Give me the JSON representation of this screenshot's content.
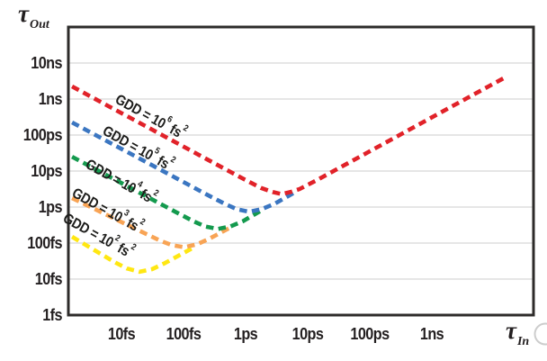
{
  "figure": {
    "background": "#ffffff",
    "frame_color": "#2d2b2a",
    "gridline_color": "#d8d8d8",
    "text_color": "#231f20"
  },
  "chart_data": {
    "type": "line",
    "title": "",
    "log_x": true,
    "log_y": true,
    "grid": "horizontal-only",
    "legend_position": "inline-rotated-labels",
    "xlabel": {
      "sym": "τ",
      "sub": "In"
    },
    "ylabel": {
      "sym": "τ",
      "sub": "Out"
    },
    "x_unit": "fs",
    "y_unit": "fs",
    "x_range_fs": [
      1.4,
      40000000.0
    ],
    "y_range_fs": [
      1,
      100000000.0
    ],
    "x_ticks": [
      {
        "label": "10fs",
        "value": 10
      },
      {
        "label": "100fs",
        "value": 100
      },
      {
        "label": "1ps",
        "value": 1000
      },
      {
        "label": "10ps",
        "value": 10000.0
      },
      {
        "label": "100ps",
        "value": 100000.0
      },
      {
        "label": "1ns",
        "value": 1000000.0
      }
    ],
    "y_ticks": [
      {
        "label": "10ns",
        "value": 10000000.0
      },
      {
        "label": "1ns",
        "value": 1000000.0
      },
      {
        "label": "100ps",
        "value": 100000.0
      },
      {
        "label": "10ps",
        "value": 10000.0
      },
      {
        "label": "1ps",
        "value": 1000
      },
      {
        "label": "100fs",
        "value": 100
      },
      {
        "label": "10fs",
        "value": 10
      },
      {
        "label": "1fs",
        "value": 1
      }
    ],
    "series": [
      {
        "id": "gdd-1e6",
        "name": "GDD = 10⁶ fs²",
        "gdd_fs2": 1000000,
        "color": "#e12229",
        "label": {
          "base": "GDD = 10",
          "exp": "6",
          "unit": " fs",
          "unit_exp": "2"
        },
        "points": [
          [
            1.6,
            2240000.0
          ],
          [
            6.06,
            646000.0
          ],
          [
            23,
            187000.0
          ],
          [
            87.5,
            54000.0
          ],
          [
            332,
            15600.0
          ],
          [
            905,
            6170
          ],
          [
            1760,
            3410
          ],
          [
            2720,
            2620
          ],
          [
            3800,
            2290
          ],
          [
            5300,
            2620
          ],
          [
            7410,
            3160
          ],
          [
            14400.0,
            5720
          ],
          [
            54800.0,
            20100.0
          ],
          [
            291000.0,
            96600.0
          ],
          [
            1540000.0,
            465000.0
          ],
          [
            8180000.0,
            2240000.0
          ],
          [
            16000000.0,
            4190000.0
          ]
        ]
      },
      {
        "id": "gdd-1e5",
        "name": "GDD = 10⁵ fs²",
        "gdd_fs2": 100000,
        "color": "#3b76c1",
        "label": {
          "base": "GDD = 10",
          "exp": "5",
          "unit": " fs",
          "unit_exp": "2"
        },
        "points": [
          [
            1.6,
            224000.0
          ],
          [
            6.06,
            65300.0
          ],
          [
            23,
            19200.0
          ],
          [
            87.5,
            5590
          ],
          [
            238,
            2210
          ],
          [
            464,
            1220
          ],
          [
            716,
            876
          ],
          [
            1140,
            741
          ],
          [
            1820,
            876
          ],
          [
            2910,
            1220
          ],
          [
            6700,
            2770
          ]
        ]
      },
      {
        "id": "gdd-1e4",
        "name": "GDD = 10⁴ fs²",
        "gdd_fs2": 10000,
        "color": "#149a4e",
        "label": {
          "base": "GDD = 10",
          "exp": "4",
          "unit": " fs",
          "unit_exp": "2"
        },
        "points": [
          [
            1.6,
            25000.0
          ],
          [
            6.06,
            7330
          ],
          [
            23,
            2150
          ],
          [
            74.1,
            737
          ],
          [
            144,
            405
          ],
          [
            223,
            290
          ],
          [
            355,
            245
          ],
          [
            567,
            290
          ],
          [
            905,
            405
          ],
          [
            1760,
            785
          ]
        ]
      },
      {
        "id": "gdd-1e3",
        "name": "GDD = 10³ fs²",
        "gdd_fs2": 1000,
        "color": "#f8a455",
        "label": {
          "base": "GDD = 10",
          "exp": "3",
          "unit": " fs",
          "unit_exp": "2"
        },
        "points": [
          [
            1.6,
            1780
          ],
          [
            5.13,
            672
          ],
          [
            16.5,
            253
          ],
          [
            42,
            117
          ],
          [
            64.8,
            87.6
          ],
          [
            103,
            76.7
          ],
          [
            165,
            92.3
          ],
          [
            263,
            133
          ],
          [
            606,
            287
          ]
        ]
      },
      {
        "id": "gdd-1e2",
        "name": "GDD = 10² fs²",
        "gdd_fs2": 100,
        "color": "#ffe712",
        "label": {
          "base": "GDD = 10",
          "exp": "2",
          "unit": " fs",
          "unit_exp": "2"
        },
        "points": [
          [
            1.6,
            150
          ],
          [
            3.67,
            63.5
          ],
          [
            7.92,
            29
          ],
          [
            12.2,
            19.7
          ],
          [
            19.5,
            15.9
          ],
          [
            31.1,
            18.8
          ],
          [
            49.6,
            27.5
          ],
          [
            144,
            74.5
          ]
        ]
      }
    ]
  }
}
